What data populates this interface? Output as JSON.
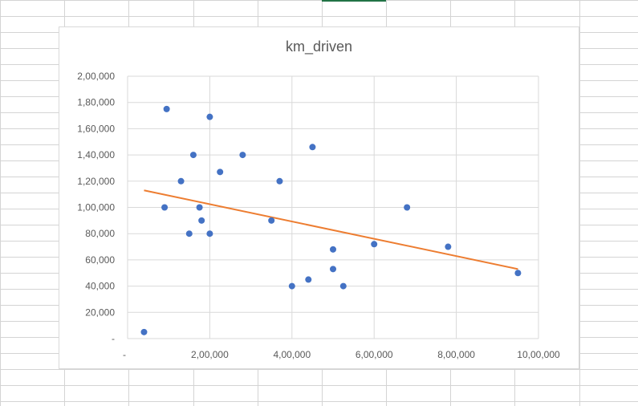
{
  "chart_data": {
    "type": "scatter",
    "title": "km_driven",
    "xlabel": "",
    "ylabel": "",
    "xlim": [
      0,
      1000000
    ],
    "ylim": [
      0,
      200000
    ],
    "x_tick_labels": [
      "-",
      "2,00,000",
      "4,00,000",
      "6,00,000",
      "8,00,000",
      "10,00,000"
    ],
    "y_tick_labels": [
      "-",
      "20,000",
      "40,000",
      "60,000",
      "80,000",
      "1,00,000",
      "1,20,000",
      "1,40,000",
      "1,60,000",
      "1,80,000",
      "2,00,000"
    ],
    "grid": true,
    "legend": "none",
    "series": [
      {
        "points": [
          [
            40000,
            5000
          ],
          [
            95000,
            175000
          ],
          [
            90000,
            100000
          ],
          [
            130000,
            120000
          ],
          [
            150000,
            80000
          ],
          [
            160000,
            140000
          ],
          [
            175000,
            100000
          ],
          [
            180000,
            90000
          ],
          [
            200000,
            169000
          ],
          [
            200000,
            80000
          ],
          [
            225000,
            127000
          ],
          [
            280000,
            140000
          ],
          [
            350000,
            90000
          ],
          [
            370000,
            120000
          ],
          [
            400000,
            40000
          ],
          [
            440000,
            45000
          ],
          [
            450000,
            146000
          ],
          [
            500000,
            68000
          ],
          [
            500000,
            53000
          ],
          [
            525000,
            40000
          ],
          [
            600000,
            72000
          ],
          [
            680000,
            100000
          ],
          [
            780000,
            70000
          ],
          [
            950000,
            50000
          ]
        ],
        "color": "#4472c4"
      }
    ],
    "trendline": {
      "type": "linear",
      "points": [
        [
          40000,
          113000
        ],
        [
          950000,
          53000
        ]
      ],
      "color": "#ed7d31"
    }
  }
}
